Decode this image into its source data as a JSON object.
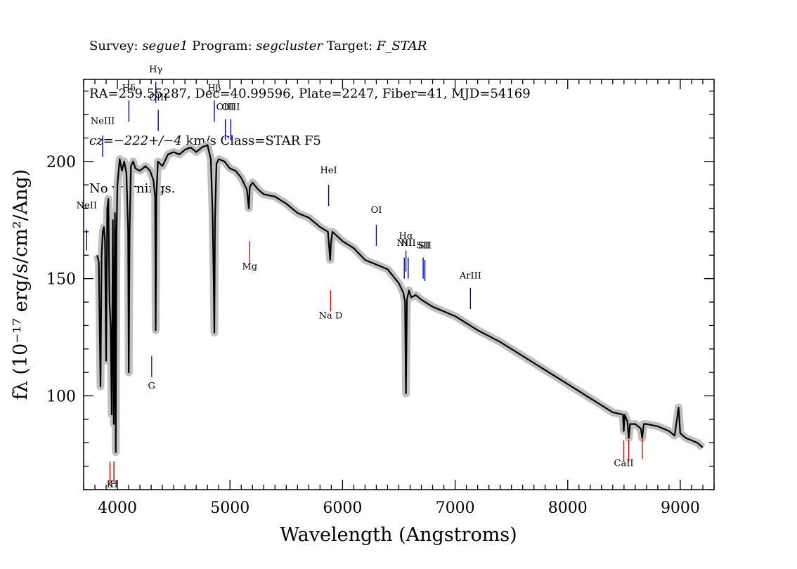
{
  "header": {
    "line1": {
      "survey_label": "Survey: ",
      "survey_value": "segue1",
      "program_label": " Program: ",
      "program_value": "segcluster",
      "target_label": " Target: ",
      "target_value": "F_STAR"
    },
    "line2": "RA=259.55287, Dec=40.99596, Plate=2247, Fiber=41, MJD=54169",
    "line3": {
      "cz_label": "cz=",
      "cz_value": "−222+/−4",
      "cz_unit": " km/s Class=STAR F5"
    },
    "line4": "No warnings."
  },
  "chart_data": {
    "type": "line",
    "xlabel": "Wavelength (Angstroms)",
    "ylabel": "fλ (10⁻¹⁷ erg/s/cm²/Ang)",
    "xlim": [
      3700,
      9300
    ],
    "ylim": [
      60,
      235
    ],
    "x_ticks": [
      4000,
      5000,
      6000,
      7000,
      8000,
      9000
    ],
    "y_ticks": [
      100,
      150,
      200
    ],
    "colors": {
      "flux": "#000000",
      "error_band": "#c0c0c0",
      "emission": "#0000cc",
      "absorption": "#dd0000"
    },
    "series": [
      {
        "x": [
          3820,
          3835,
          3850,
          3860,
          3870,
          3880,
          3890,
          3900,
          3910,
          3920,
          3930,
          3940,
          3950,
          3960,
          3968,
          3972,
          3978,
          3985,
          3992,
          4000,
          4020,
          4040,
          4060,
          4080,
          4095,
          4101,
          4108,
          4120,
          4140,
          4160,
          4200,
          4250,
          4290,
          4320,
          4335,
          4340,
          4346,
          4360,
          4400,
          4450,
          4500,
          4550,
          4600,
          4650,
          4700,
          4750,
          4800,
          4830,
          4845,
          4855,
          4861,
          4867,
          4880,
          4900,
          4950,
          5000,
          5050,
          5100,
          5150,
          5167,
          5175,
          5200,
          5250,
          5300,
          5400,
          5500,
          5600,
          5700,
          5800,
          5870,
          5890,
          5896,
          5910,
          6000,
          6100,
          6200,
          6300,
          6400,
          6500,
          6540,
          6555,
          6563,
          6572,
          6590,
          6610,
          6650,
          6700,
          6800,
          6900,
          7000,
          7200,
          7400,
          7600,
          7800,
          8000,
          8200,
          8400,
          8490,
          8498,
          8506,
          8530,
          8542,
          8554,
          8600,
          8650,
          8662,
          8675,
          8700,
          8800,
          8900,
          8950,
          8985,
          9000,
          9050,
          9100,
          9150,
          9200
        ],
        "y": [
          160,
          157,
          104,
          160,
          170,
          172,
          166,
          115,
          180,
          184,
          140,
          130,
          92,
          175,
          88,
          108,
          178,
          76,
          170,
          190,
          201,
          196,
          200,
          195,
          170,
          110,
          170,
          198,
          200,
          197,
          196,
          198,
          196,
          192,
          185,
          128,
          185,
          200,
          198,
          203,
          204,
          203,
          205,
          206,
          204,
          206,
          207,
          201,
          178,
          150,
          127,
          175,
          199,
          201,
          200,
          197,
          196,
          193,
          188,
          180,
          189,
          191,
          188,
          186,
          185,
          182,
          178,
          176,
          172,
          170,
          158,
          165,
          170,
          166,
          163,
          158,
          156,
          154,
          148,
          144,
          140,
          101,
          141,
          145,
          142,
          143,
          141,
          138,
          136,
          134,
          128,
          123,
          117,
          111,
          105,
          99,
          93,
          92,
          85,
          92,
          89,
          82,
          88,
          88,
          86,
          82,
          88,
          88,
          87,
          85,
          83,
          95,
          84,
          82,
          81,
          80,
          78
        ]
      }
    ],
    "line_markers": [
      {
        "label": "NeII",
        "x": 3727,
        "y_label": 180,
        "y_top": 171,
        "y_bot": 162,
        "color": "emission"
      },
      {
        "label": "NeIII",
        "x": 3869,
        "y_label": 216,
        "y_top": 211,
        "y_bot": 202,
        "color": "emission"
      },
      {
        "label": "Hδ",
        "x": 4102,
        "y_label": 230,
        "y_top": 226,
        "y_bot": 217,
        "color": "emission"
      },
      {
        "label": "Hγ",
        "x": 4341,
        "y_label": 238,
        "y_top": 234,
        "y_bot": 225,
        "color": "emission"
      },
      {
        "label": "OIII",
        "x": 4363,
        "y_label": 226,
        "y_top": 222,
        "y_bot": 213,
        "color": "emission"
      },
      {
        "label": "Hβ",
        "x": 4861,
        "y_label": 230,
        "y_top": 226,
        "y_bot": 217,
        "color": "emission"
      },
      {
        "label": "OIII",
        "x": 4959,
        "y_label": 222,
        "y_top": 218,
        "y_bot": 209,
        "color": "emission"
      },
      {
        "label": "OIII",
        "x": 5007,
        "y_label": 222,
        "y_top": 218,
        "y_bot": 209,
        "color": "emission"
      },
      {
        "label": "HeI",
        "x": 5876,
        "y_label": 195,
        "y_top": 190,
        "y_bot": 181,
        "color": "emission"
      },
      {
        "label": "OI",
        "x": 6300,
        "y_label": 178,
        "y_top": 173,
        "y_bot": 164,
        "color": "emission"
      },
      {
        "label": "NII",
        "x": 6548,
        "y_label": 164,
        "y_top": 159,
        "y_bot": 150,
        "color": "emission"
      },
      {
        "label": "Hα",
        "x": 6563,
        "y_label": 167,
        "y_top": 162,
        "y_bot": 153,
        "color": "emission"
      },
      {
        "label": "NII",
        "x": 6583,
        "y_label": 164,
        "y_top": 159,
        "y_bot": 150,
        "color": "emission"
      },
      {
        "label": "SII",
        "x": 6716,
        "y_label": 163,
        "y_top": 159,
        "y_bot": 150,
        "color": "emission"
      },
      {
        "label": "SII",
        "x": 6731,
        "y_label": 163,
        "y_top": 158,
        "y_bot": 149,
        "color": "emission"
      },
      {
        "label": "ArIII",
        "x": 7136,
        "y_label": 150,
        "y_top": 146,
        "y_bot": 137,
        "color": "emission"
      },
      {
        "label": "G",
        "x": 4304,
        "y_label": 103,
        "y_top": 117,
        "y_bot": 108,
        "color": "absorption"
      },
      {
        "label": "Mg",
        "x": 5175,
        "y_label": 154,
        "y_top": 166,
        "y_bot": 157,
        "color": "absorption"
      },
      {
        "label": "Na D",
        "x": 5894,
        "y_label": 133,
        "y_top": 145,
        "y_bot": 136,
        "color": "absorption"
      },
      {
        "label": "K",
        "x": 3934,
        "y_label": 61,
        "y_top": 72,
        "y_bot": 63,
        "color": "absorption"
      },
      {
        "label": "H",
        "x": 3969,
        "y_label": 61,
        "y_top": 72,
        "y_bot": 63,
        "color": "absorption"
      },
      {
        "label": "CaII",
        "x": 8498,
        "y_label": 70,
        "y_top": 81,
        "y_bot": 72,
        "color": "absorption"
      },
      {
        "label": "",
        "x": 8542,
        "y_label": 70,
        "y_top": 81,
        "y_bot": 72,
        "color": "absorption"
      },
      {
        "label": "",
        "x": 8662,
        "y_label": 70,
        "y_top": 82,
        "y_bot": 73,
        "color": "absorption"
      }
    ]
  }
}
